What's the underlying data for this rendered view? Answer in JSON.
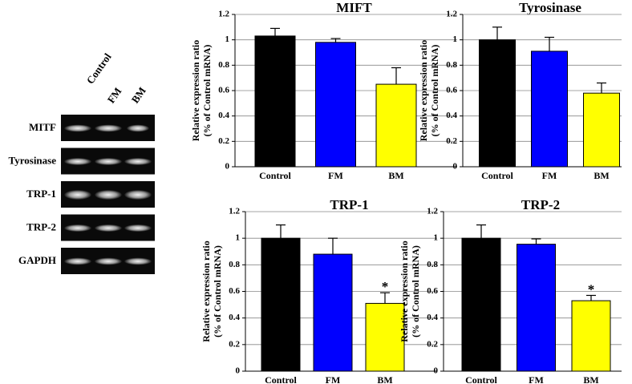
{
  "gel": {
    "lanes": [
      "Control",
      "FM",
      "BM"
    ],
    "genes": [
      "MITF",
      "Tyrosinase",
      "TRP-1",
      "TRP-2",
      "GAPDH"
    ]
  },
  "chart_data": [
    {
      "type": "bar",
      "title": "MIFT",
      "ylabel": [
        "Relative expression ratio",
        "(% of Control mRNA)"
      ],
      "categories": [
        "Control",
        "FM",
        "BM"
      ],
      "values": [
        1.03,
        0.98,
        0.65
      ],
      "errors": [
        0.06,
        0.03,
        0.13
      ],
      "colors": [
        "#000000",
        "#0000ff",
        "#ffff00"
      ],
      "annotations": [
        null,
        null,
        null
      ],
      "ylim": [
        0,
        1.2
      ],
      "yticks": [
        0,
        0.2,
        0.4,
        0.6,
        0.8,
        1,
        1.2
      ],
      "grid": true
    },
    {
      "type": "bar",
      "title": "Tyrosinase",
      "ylabel": [
        "Relative expression ratio",
        "(% of Control mRNA)"
      ],
      "categories": [
        "Control",
        "FM",
        "BM"
      ],
      "values": [
        1.0,
        0.91,
        0.58
      ],
      "errors": [
        0.1,
        0.11,
        0.08
      ],
      "colors": [
        "#000000",
        "#0000ff",
        "#ffff00"
      ],
      "annotations": [
        null,
        null,
        null
      ],
      "ylim": [
        0,
        1.2
      ],
      "yticks": [
        0,
        0.2,
        0.4,
        0.6,
        0.8,
        1,
        1.2
      ],
      "grid": true
    },
    {
      "type": "bar",
      "title": "TRP-1",
      "ylabel": [
        "Relative expression ratio",
        "(% of Control mRNA)"
      ],
      "categories": [
        "Control",
        "FM",
        "BM"
      ],
      "values": [
        1.0,
        0.88,
        0.51
      ],
      "errors": [
        0.1,
        0.12,
        0.08
      ],
      "colors": [
        "#000000",
        "#0000ff",
        "#ffff00"
      ],
      "annotations": [
        null,
        null,
        "*"
      ],
      "ylim": [
        0,
        1.2
      ],
      "yticks": [
        0,
        0.2,
        0.4,
        0.6,
        0.8,
        1,
        1.2
      ],
      "grid": true
    },
    {
      "type": "bar",
      "title": "TRP-2",
      "ylabel": [
        "Relative expression ratio",
        "(% of Control mRNA)"
      ],
      "categories": [
        "Control",
        "FM",
        "BM"
      ],
      "values": [
        1.0,
        0.955,
        0.53
      ],
      "errors": [
        0.1,
        0.04,
        0.04
      ],
      "colors": [
        "#000000",
        "#0000ff",
        "#ffff00"
      ],
      "annotations": [
        null,
        null,
        "*"
      ],
      "ylim": [
        0,
        1.2
      ],
      "yticks": [
        0,
        0.2,
        0.4,
        0.6,
        0.8,
        1,
        1.2
      ],
      "grid": true
    }
  ]
}
